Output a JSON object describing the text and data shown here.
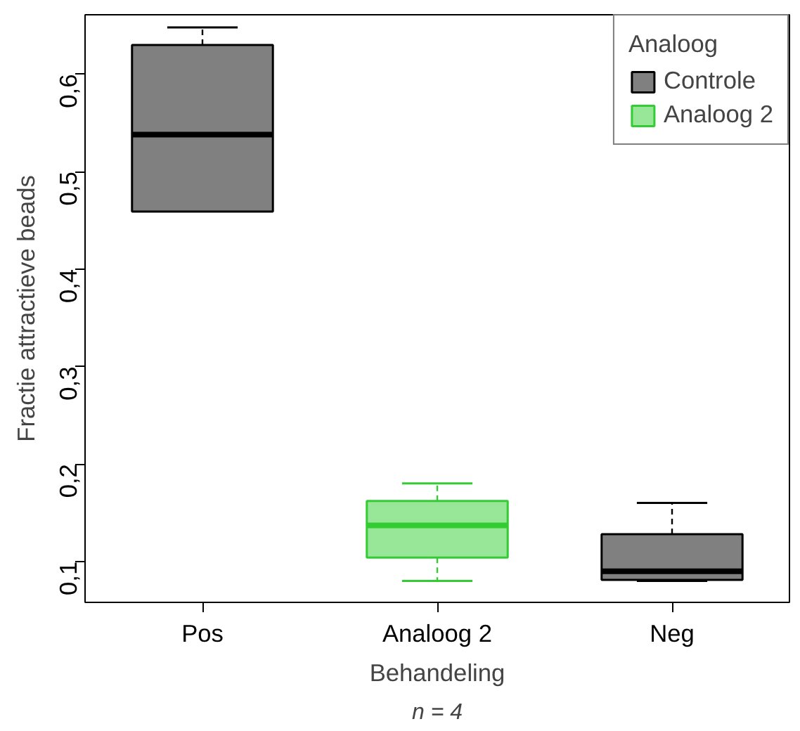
{
  "chart_data": {
    "type": "box",
    "xlabel": "Behandeling",
    "ylabel": "Fractie attractieve beads",
    "legend_title": "Analoog",
    "categories": [
      "Pos",
      "Analoog 2",
      "Neg"
    ],
    "series": [
      {
        "name": "Controle",
        "color": "#808080",
        "boxes": [
          {
            "low": 0.459,
            "q1": 0.459,
            "median": 0.538,
            "q3": 0.63,
            "high": 0.648
          },
          null,
          {
            "low": 0.08,
            "q1": 0.081,
            "median": 0.09,
            "q3": 0.128,
            "high": 0.16
          }
        ]
      },
      {
        "name": "Analoog 2",
        "color": "#98e698",
        "boxes": [
          null,
          {
            "low": 0.08,
            "q1": 0.104,
            "median": 0.137,
            "q3": 0.162,
            "high": 0.18
          },
          null
        ]
      }
    ],
    "ylim": [
      0.058,
      0.661
    ],
    "yticks": [
      {
        "value": 0.1,
        "label": "0,1"
      },
      {
        "value": 0.2,
        "label": "0,2"
      },
      {
        "value": 0.3,
        "label": "0,3"
      },
      {
        "value": 0.4,
        "label": "0,4"
      },
      {
        "value": 0.5,
        "label": "0,5"
      },
      {
        "value": 0.6,
        "label": "0,6"
      }
    ],
    "annotations": [
      "n = 4"
    ],
    "grid": false,
    "legend": "top right"
  }
}
